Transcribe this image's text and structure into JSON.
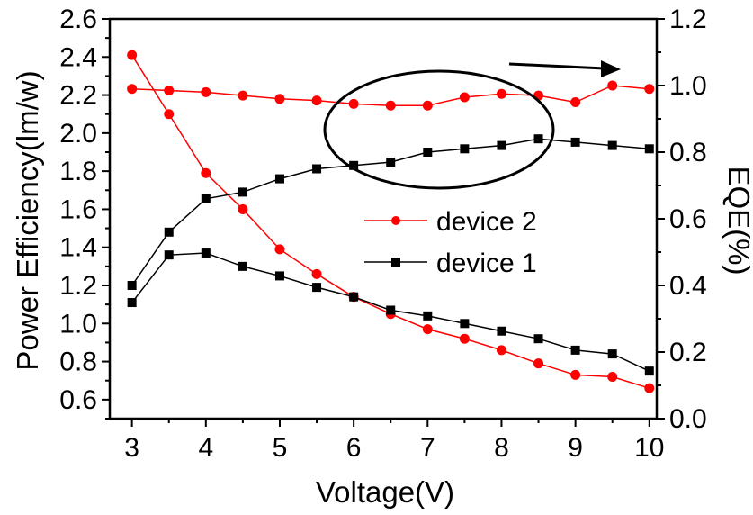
{
  "chart_data": {
    "type": "line",
    "xlabel": "Voltage(V)",
    "ylabel_left": "Power Efficiency(lm/w)",
    "ylabel_right": "EQE(%)",
    "xlim": [
      2.7,
      10.1
    ],
    "ylim_left": [
      0.5,
      2.6
    ],
    "ylim_right": [
      0.0,
      1.2
    ],
    "x_ticks": [
      3,
      4,
      5,
      6,
      7,
      8,
      9,
      10
    ],
    "y_ticks_left": [
      "0.6",
      "0.8",
      "1.0",
      "1.2",
      "1.4",
      "1.6",
      "1.8",
      "2.0",
      "2.2",
      "2.4",
      "2.6"
    ],
    "y_ticks_right": [
      "0.0",
      "0.2",
      "0.4",
      "0.6",
      "0.8",
      "1.0",
      "1.2"
    ],
    "grid": false,
    "legend_position": "center-right",
    "x": [
      3,
      3.5,
      4,
      4.5,
      5,
      5.5,
      6,
      6.5,
      7,
      7.5,
      8,
      8.5,
      9,
      9.5,
      10
    ],
    "series": [
      {
        "name": "device 2",
        "axis": "left",
        "marker": "circle",
        "color": "#ff0000",
        "values": [
          2.41,
          2.1,
          1.79,
          1.6,
          1.39,
          1.26,
          1.14,
          1.05,
          0.97,
          0.92,
          0.86,
          0.79,
          0.73,
          0.72,
          0.66
        ]
      },
      {
        "name": "device 1",
        "axis": "left",
        "marker": "square",
        "color": "#000000",
        "values": [
          1.11,
          1.36,
          1.37,
          1.3,
          1.25,
          1.19,
          1.14,
          1.07,
          1.04,
          1.0,
          0.96,
          0.92,
          0.86,
          0.84,
          0.75
        ]
      },
      {
        "name": "",
        "axis": "right",
        "marker": "circle",
        "color": "#ff0000",
        "values": [
          0.99,
          0.985,
          0.98,
          0.97,
          0.96,
          0.955,
          0.945,
          0.94,
          0.94,
          0.965,
          0.975,
          0.97,
          0.95,
          1.0,
          0.99
        ]
      },
      {
        "name": "",
        "axis": "right",
        "marker": "square",
        "color": "#000000",
        "values": [
          0.4,
          0.56,
          0.66,
          0.68,
          0.72,
          0.75,
          0.76,
          0.77,
          0.8,
          0.81,
          0.82,
          0.84,
          0.83,
          0.82,
          0.81
        ]
      }
    ],
    "annotations": [
      {
        "type": "ellipse",
        "around": "EQE curves, x 6 to 8.7"
      },
      {
        "type": "arrow",
        "direction": "right",
        "meaning": "points to right axis"
      }
    ]
  }
}
